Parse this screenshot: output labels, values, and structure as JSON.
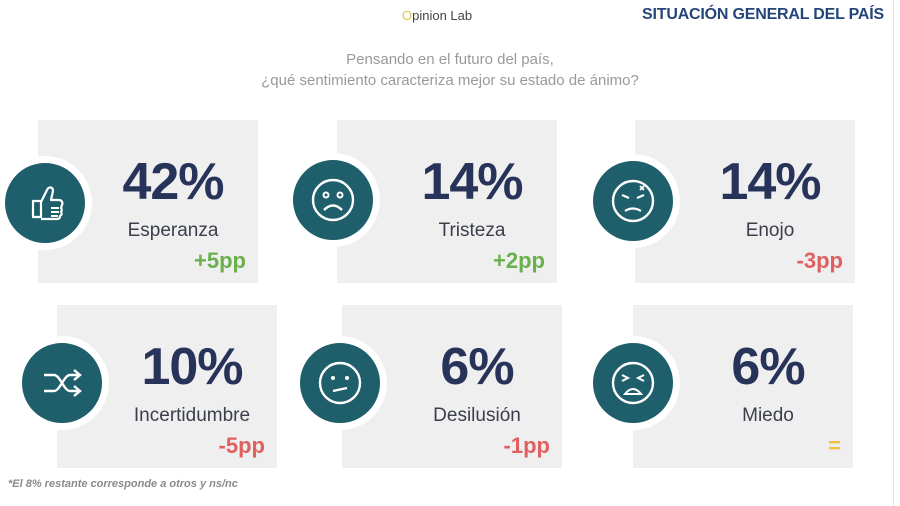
{
  "header": {
    "logo": "Opinion Lab",
    "title": "SITUACIÓN GENERAL DEL PAÍS"
  },
  "question": {
    "line1": "Pensando en el futuro del país,",
    "line2": "¿qué sentimiento caracteriza mejor su estado de ánimo?"
  },
  "items": [
    {
      "percent": "42%",
      "label": "Esperanza",
      "change": "+5pp",
      "icon": "thumbs-up-icon",
      "change_color": "#6ab04c"
    },
    {
      "percent": "14%",
      "label": "Tristeza",
      "change": "+2pp",
      "icon": "sad-face-icon",
      "change_color": "#6ab04c"
    },
    {
      "percent": "14%",
      "label": "Enojo",
      "change": "-3pp",
      "icon": "angry-face-icon",
      "change_color": "#e06060"
    },
    {
      "percent": "10%",
      "label": "Incertidumbre",
      "change": "-5pp",
      "icon": "shuffle-icon",
      "change_color": "#e06060"
    },
    {
      "percent": "6%",
      "label": "Desilusión",
      "change": "-1pp",
      "icon": "neutral-face-icon",
      "change_color": "#e06060"
    },
    {
      "percent": "6%",
      "label": "Miedo",
      "change": "=",
      "icon": "scared-face-icon",
      "change_color": "#f0c040"
    }
  ],
  "colors": {
    "icon_circle": "#1f5f6b",
    "percent_text": "#28335a",
    "title": "#24457a"
  },
  "footnote": "*El 8% restante corresponde a otros y ns/nc"
}
